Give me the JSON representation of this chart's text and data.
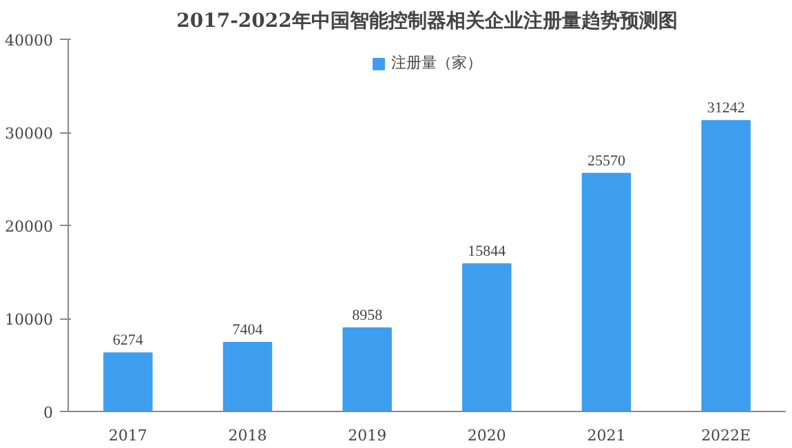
{
  "chart_data": {
    "type": "bar",
    "title": "2017-2022年中国智能控制器相关企业注册量趋势预测图",
    "categories": [
      "2017",
      "2018",
      "2019",
      "2020",
      "2021",
      "2022E"
    ],
    "series": [
      {
        "name": "注册量（家）",
        "color": "#3d9ef0",
        "values": [
          6274,
          7404,
          8958,
          15844,
          25570,
          31242
        ]
      }
    ],
    "ylim": [
      0,
      40000
    ],
    "yticks": [
      0,
      10000,
      20000,
      30000,
      40000
    ],
    "grid": false,
    "legend": "top",
    "data_labels": true
  }
}
